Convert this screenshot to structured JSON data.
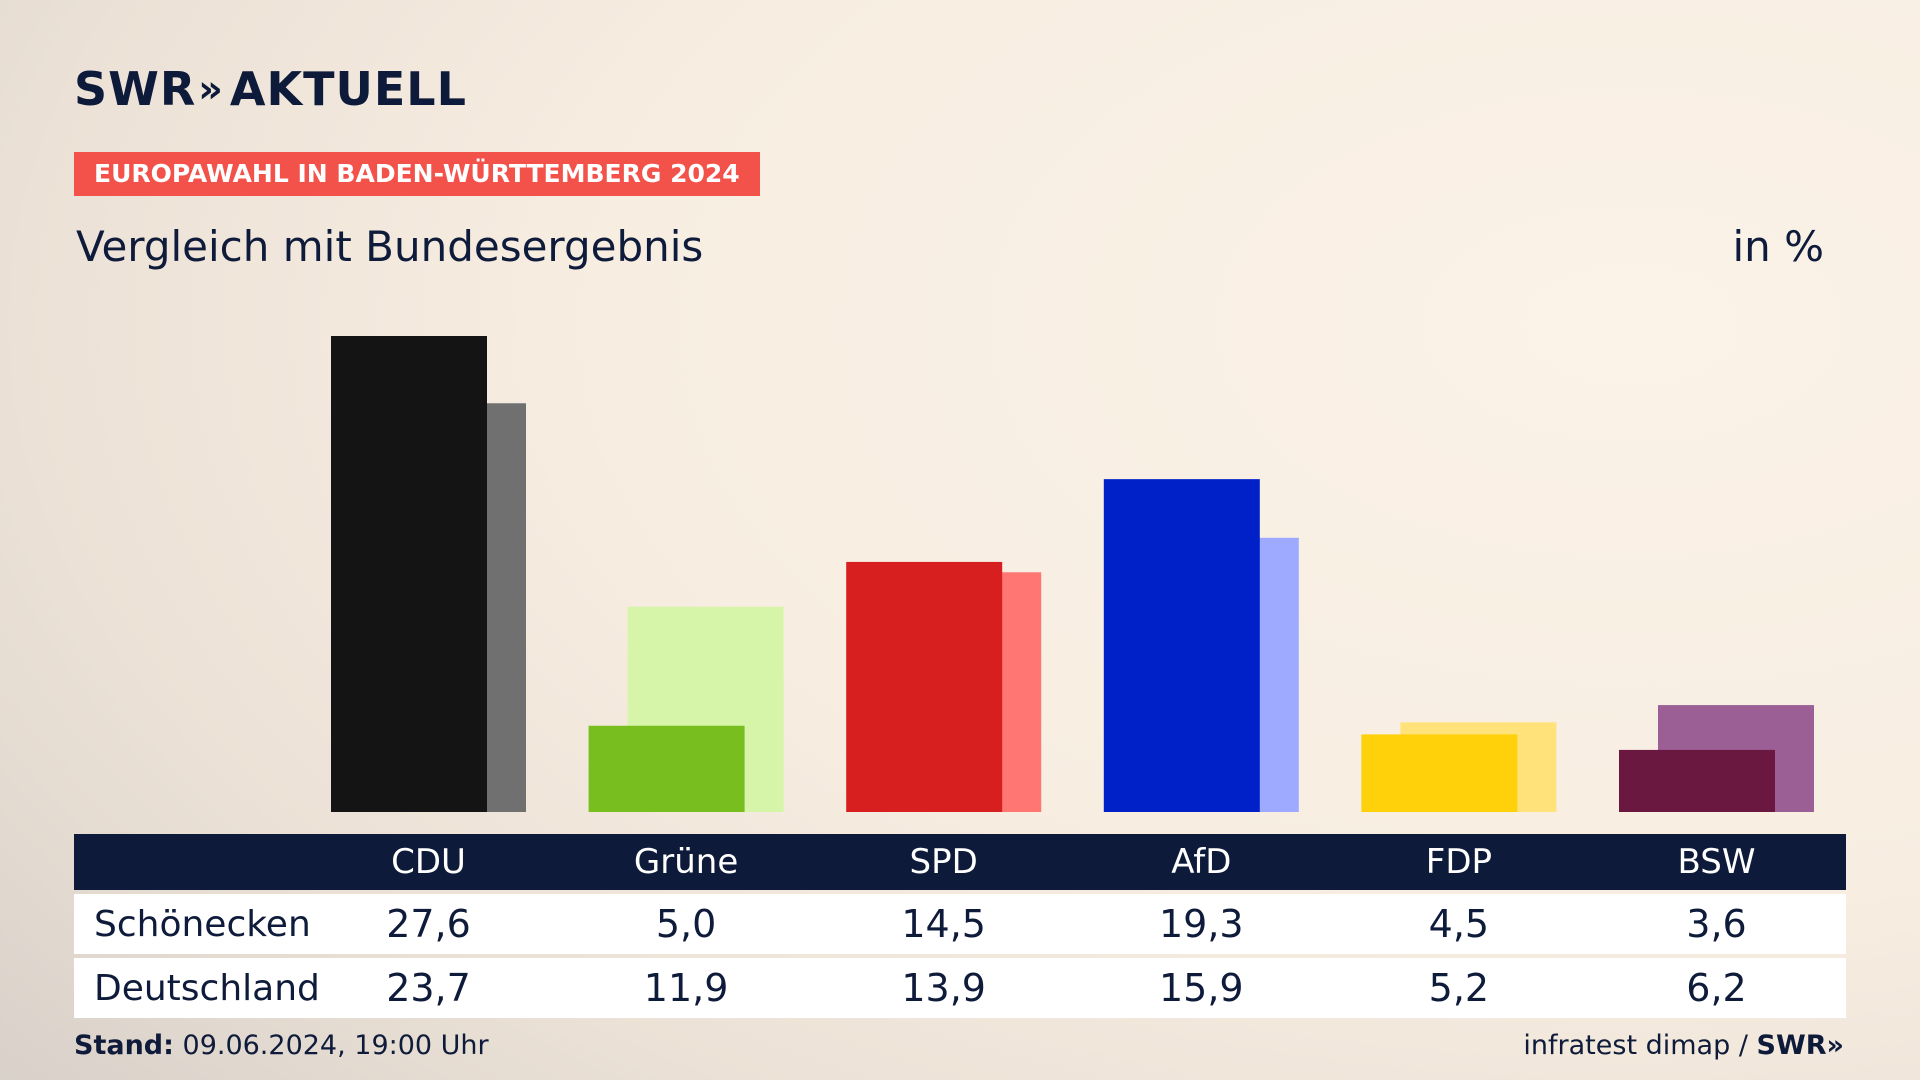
{
  "brand": {
    "name": "SWR",
    "chevrons": "»",
    "section": "AKTUELL"
  },
  "ribbon": "EUROPAWAHL IN BADEN-WÜRTTEMBERG 2024",
  "subtitle": "Vergleich mit Bundesergebnis",
  "unit": "in %",
  "table": {
    "rows": [
      {
        "label": "Schönecken",
        "values": [
          "27,6",
          "5,0",
          "14,5",
          "19,3",
          "4,5",
          "3,6"
        ]
      },
      {
        "label": "Deutschland",
        "values": [
          "23,7",
          "11,9",
          "13,9",
          "15,9",
          "5,2",
          "6,2"
        ]
      }
    ]
  },
  "footer": {
    "stand_label": "Stand:",
    "stand_value": "09.06.2024, 19:00 Uhr",
    "source": "infratest dimap /",
    "source_brand": "SWR»"
  },
  "chart_data": {
    "type": "bar",
    "categories": [
      "CDU",
      "Grüne",
      "SPD",
      "AfD",
      "FDP",
      "BSW"
    ],
    "series": [
      {
        "name": "Schönecken",
        "values": [
          27.6,
          5.0,
          14.5,
          19.3,
          4.5,
          3.6
        ]
      },
      {
        "name": "Deutschland",
        "values": [
          23.7,
          11.9,
          13.9,
          15.9,
          5.2,
          6.2
        ]
      }
    ],
    "colors": {
      "Schönecken": [
        "#141414",
        "#77be1e",
        "#d81f1f",
        "#0020c8",
        "#ffd10a",
        "#6b1840"
      ],
      "Deutschland": [
        "#707070",
        "#d6f5a8",
        "#ff7672",
        "#9eaaff",
        "#ffe37a",
        "#9b5f96"
      ]
    },
    "ylim": [
      0,
      27.6
    ],
    "title": "Vergleich mit Bundesergebnis",
    "ylabel": "in %",
    "grid": false
  }
}
